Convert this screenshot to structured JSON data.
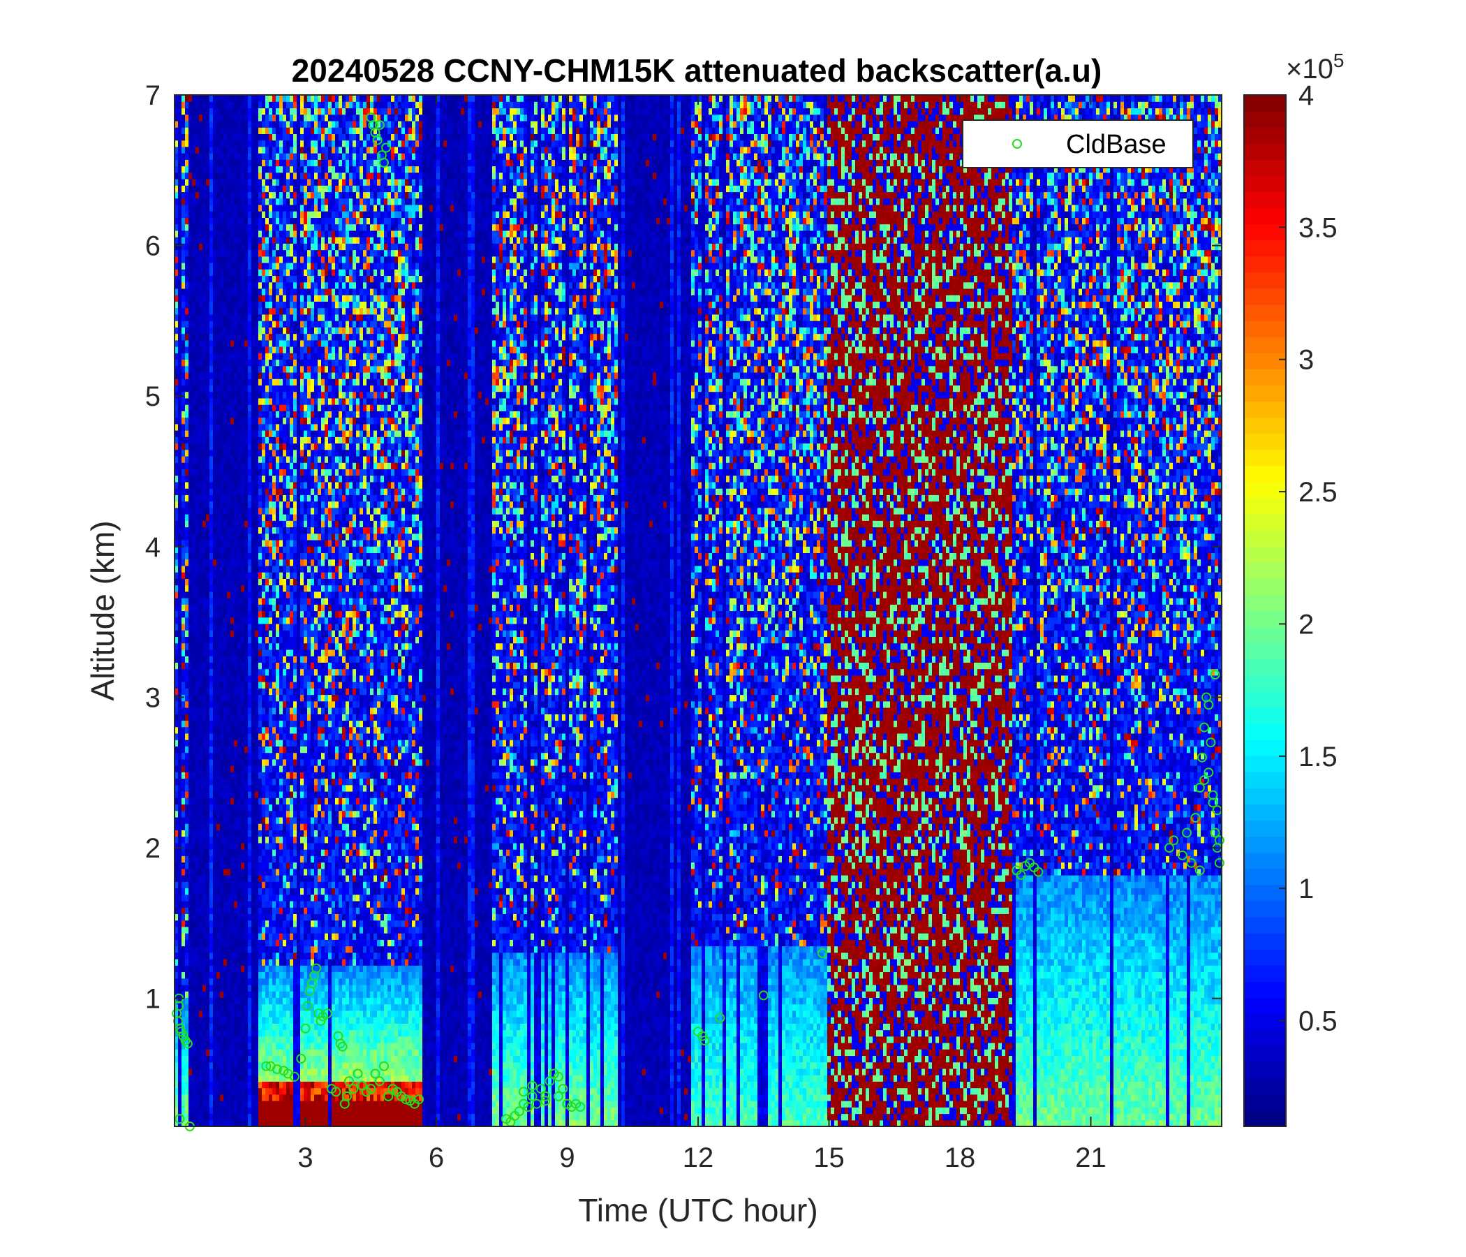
{
  "chart_data": {
    "type": "heatmap",
    "title": "20240528 CCNY-CHM15K attenuated backscatter(a.u)",
    "xlabel": "Time (UTC hour)",
    "ylabel": "Altitude (km)",
    "xlim": [
      0,
      24
    ],
    "ylim": [
      0.15,
      7
    ],
    "xticks": [
      3,
      6,
      9,
      12,
      15,
      18,
      21
    ],
    "yticks": [
      1,
      2,
      3,
      4,
      5,
      6,
      7
    ],
    "colorbar": {
      "clim": [
        0.1,
        4
      ],
      "ticks": [
        0.5,
        1,
        1.5,
        2,
        2.5,
        3,
        3.5,
        4
      ],
      "exponent_label": "×10",
      "exponent": "5",
      "colormap": "jet"
    },
    "legend": {
      "entries": [
        "CldBase"
      ],
      "placement": "top-right",
      "marker_color": "#22dd22"
    },
    "regimes": [
      {
        "t0": 0.0,
        "t1": 0.35,
        "kind": "aerosol",
        "top": 1.0,
        "strength": 0.45
      },
      {
        "t0": 0.35,
        "t1": 1.9,
        "kind": "dark"
      },
      {
        "t0": 1.9,
        "t1": 5.7,
        "kind": "aerosol",
        "top": 1.2,
        "strength": 0.7
      },
      {
        "t0": 5.7,
        "t1": 7.3,
        "kind": "dark"
      },
      {
        "t0": 7.3,
        "t1": 10.2,
        "kind": "aerosol",
        "top": 1.3,
        "strength": 0.45
      },
      {
        "t0": 10.2,
        "t1": 11.8,
        "kind": "dark"
      },
      {
        "t0": 11.8,
        "t1": 15.0,
        "kind": "aerosol",
        "top": 1.35,
        "strength": 0.35
      },
      {
        "t0": 15.0,
        "t1": 19.2,
        "kind": "saturated"
      },
      {
        "t0": 19.2,
        "t1": 24.0,
        "kind": "aerosol",
        "top": 1.8,
        "strength": 0.4
      }
    ],
    "cloud_base": {
      "x": [
        0.05,
        0.08,
        0.1,
        0.12,
        0.15,
        0.2,
        0.25,
        0.3,
        0.35,
        0.1,
        0.12,
        2.1,
        2.2,
        2.35,
        2.5,
        2.6,
        2.75,
        2.9,
        3.0,
        3.05,
        3.1,
        3.15,
        3.2,
        3.25,
        3.3,
        3.35,
        3.4,
        3.5,
        3.6,
        3.7,
        3.75,
        3.8,
        3.85,
        3.9,
        3.95,
        4.0,
        4.1,
        4.2,
        4.3,
        4.4,
        4.5,
        4.6,
        4.7,
        4.8,
        4.9,
        5.0,
        5.1,
        5.2,
        5.3,
        5.4,
        5.5,
        5.6,
        4.5,
        4.55,
        4.6,
        4.65,
        4.7,
        4.75,
        4.8,
        4.85,
        7.6,
        7.7,
        7.8,
        7.9,
        8.0,
        8.1,
        8.2,
        8.3,
        8.4,
        8.5,
        8.6,
        8.7,
        8.8,
        8.9,
        9.0,
        9.1,
        9.2,
        9.3,
        8.0,
        8.2,
        8.5,
        8.8,
        9.0,
        12.0,
        12.1,
        12.15,
        12.5,
        13.5,
        14.85,
        19.3,
        19.4,
        19.5,
        19.6,
        19.7,
        19.8,
        22.8,
        22.9,
        23.1,
        23.2,
        23.3,
        23.4,
        23.5,
        23.55,
        23.6,
        23.65,
        23.7,
        23.75,
        23.8,
        23.85,
        23.9,
        23.95,
        23.5,
        23.6,
        23.7,
        23.8,
        23.9,
        23.85,
        23.95
      ],
      "y": [
        0.9,
        0.85,
        0.95,
        0.8,
        0.78,
        0.75,
        0.72,
        0.7,
        0.15,
        1.0,
        0.2,
        0.55,
        0.55,
        0.53,
        0.52,
        0.5,
        0.48,
        0.6,
        0.8,
        0.95,
        1.05,
        1.1,
        1.15,
        1.2,
        0.9,
        0.85,
        0.88,
        0.9,
        0.4,
        0.38,
        0.75,
        0.7,
        0.68,
        0.3,
        0.35,
        0.45,
        0.4,
        0.5,
        0.42,
        0.38,
        0.4,
        0.5,
        0.45,
        0.55,
        0.35,
        0.4,
        0.38,
        0.35,
        0.33,
        0.32,
        0.3,
        0.33,
        6.85,
        6.8,
        6.75,
        6.7,
        6.8,
        6.6,
        6.55,
        6.65,
        0.2,
        0.18,
        0.22,
        0.25,
        0.3,
        0.28,
        0.35,
        0.3,
        0.4,
        0.32,
        0.45,
        0.5,
        0.35,
        0.4,
        0.3,
        0.28,
        0.3,
        0.28,
        0.38,
        0.42,
        0.35,
        0.48,
        0.3,
        0.78,
        0.75,
        0.72,
        0.87,
        1.02,
        1.3,
        1.85,
        1.82,
        1.88,
        1.9,
        1.87,
        1.84,
        2.0,
        2.05,
        1.95,
        2.1,
        1.9,
        2.2,
        2.4,
        2.6,
        2.8,
        3.0,
        2.5,
        2.7,
        2.3,
        2.1,
        2.0,
        1.9,
        1.85,
        2.45,
        2.95,
        2.35,
        2.25,
        3.15,
        2.05
      ]
    }
  }
}
